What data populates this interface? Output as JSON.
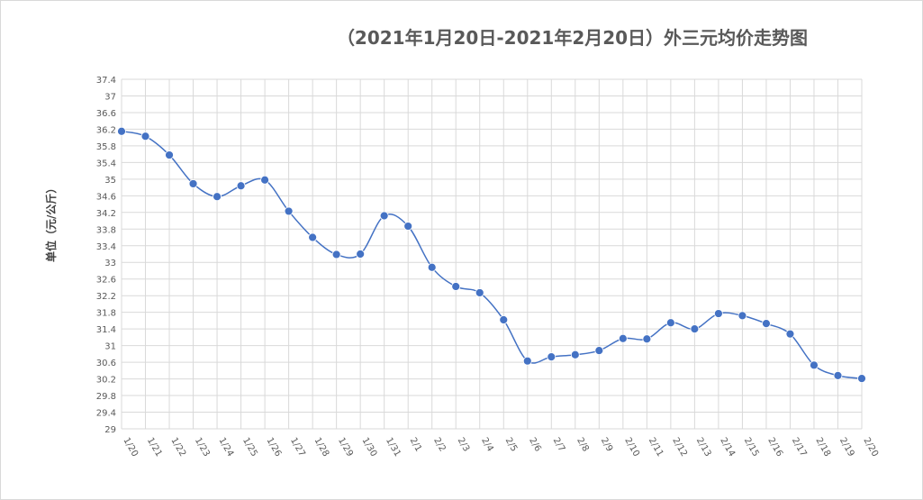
{
  "chart_data": {
    "type": "line",
    "title": "（2021年1月20日-2021年2月20日）外三元均价走势图",
    "ylabel": "单位（元/公斤）",
    "xlabel": "",
    "ylim": [
      29,
      37.4
    ],
    "ytick_step": 0.4,
    "yticks": [
      "29",
      "29.4",
      "29.8",
      "30.2",
      "30.6",
      "31",
      "31.4",
      "31.8",
      "32.2",
      "32.6",
      "33",
      "33.4",
      "33.8",
      "34.2",
      "34.6",
      "35",
      "35.4",
      "35.8",
      "36.2",
      "36.6",
      "37",
      "37.4"
    ],
    "grid": true,
    "legend": "none",
    "categories": [
      "1/20",
      "1/21",
      "1/22",
      "1/23",
      "1/24",
      "1/25",
      "1/26",
      "1/27",
      "1/28",
      "1/29",
      "1/30",
      "1/31",
      "2/1",
      "2/2",
      "2/3",
      "2/4",
      "2/5",
      "2/6",
      "2/7",
      "2/8",
      "2/9",
      "2/10",
      "2/11",
      "2/12",
      "2/13",
      "2/14",
      "2/15",
      "2/16",
      "2/17",
      "2/18",
      "2/19",
      "2/20"
    ],
    "series": [
      {
        "values": [
          36.15,
          36.03,
          35.58,
          34.89,
          34.58,
          34.84,
          34.98,
          34.23,
          33.6,
          33.19,
          33.2,
          34.12,
          33.87,
          32.88,
          32.42,
          32.27,
          31.62,
          30.63,
          30.73,
          30.78,
          30.88,
          31.17,
          31.16,
          31.55,
          31.4,
          31.77,
          31.72,
          31.53,
          31.28,
          30.53,
          30.28,
          30.21
        ],
        "color": "#4472c4"
      }
    ]
  }
}
